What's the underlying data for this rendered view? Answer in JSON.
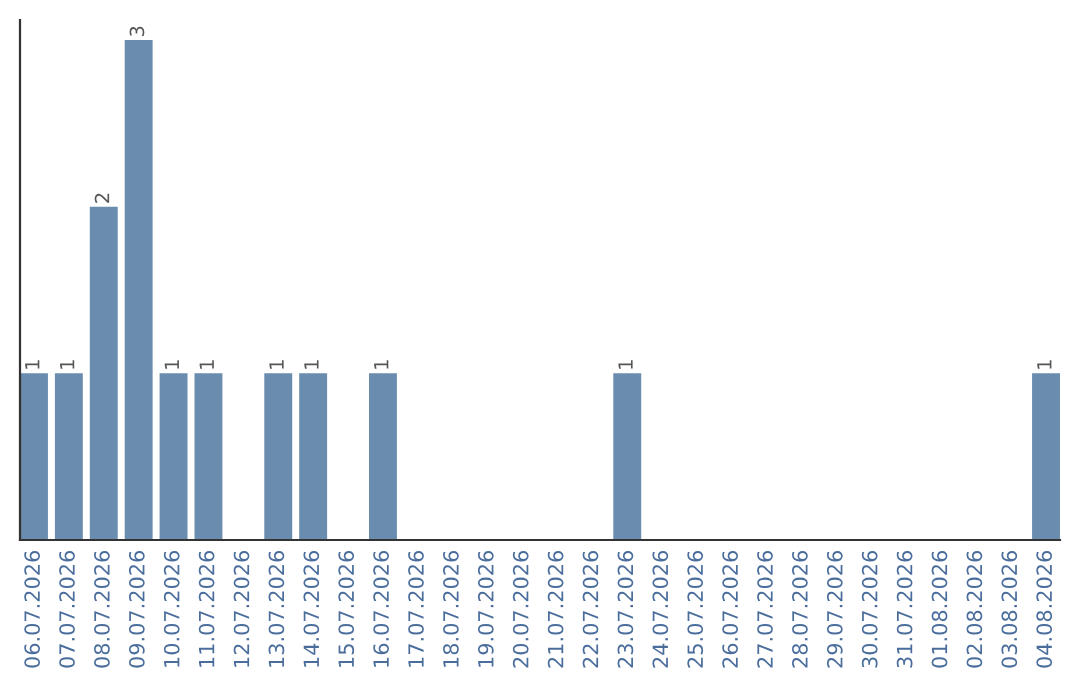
{
  "chart_data": {
    "type": "bar",
    "categories": [
      "06.07.2026",
      "07.07.2026",
      "08.07.2026",
      "09.07.2026",
      "10.07.2026",
      "11.07.2026",
      "12.07.2026",
      "13.07.2026",
      "14.07.2026",
      "15.07.2026",
      "16.07.2026",
      "17.07.2026",
      "18.07.2026",
      "19.07.2026",
      "20.07.2026",
      "21.07.2026",
      "22.07.2026",
      "23.07.2026",
      "24.07.2026",
      "25.07.2026",
      "26.07.2026",
      "27.07.2026",
      "28.07.2026",
      "29.07.2026",
      "30.07.2026",
      "31.07.2026",
      "01.08.2026",
      "02.08.2026",
      "03.08.2026",
      "04.08.2026"
    ],
    "values": [
      1,
      1,
      2,
      3,
      1,
      1,
      0,
      1,
      1,
      0,
      1,
      0,
      0,
      0,
      0,
      0,
      0,
      1,
      0,
      0,
      0,
      0,
      0,
      0,
      0,
      0,
      0,
      0,
      0,
      1
    ],
    "value_labels": [
      "1",
      "1",
      "2",
      "3",
      "1",
      "1",
      null,
      "1",
      "1",
      null,
      "1",
      null,
      null,
      null,
      null,
      null,
      null,
      "1",
      null,
      null,
      null,
      null,
      null,
      null,
      null,
      null,
      null,
      null,
      null,
      "1"
    ],
    "color": "#6a8caf",
    "tick_labels": "x",
    "grid": false,
    "legend": false
  }
}
